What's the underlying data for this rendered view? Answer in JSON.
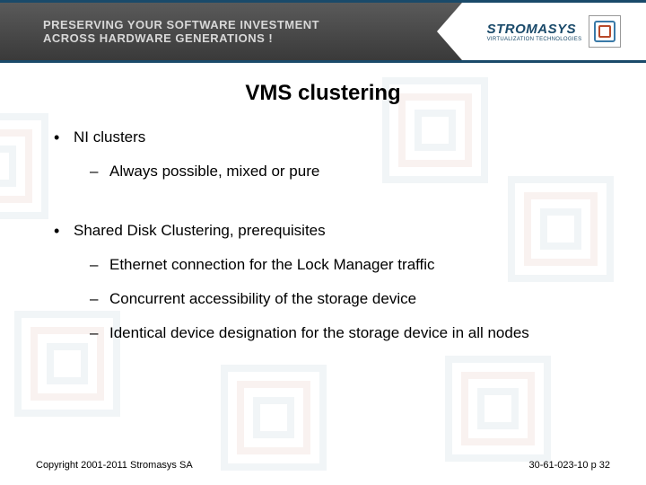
{
  "header": {
    "tagline_line1": "PRESERVING YOUR SOFTWARE INVESTMENT",
    "tagline_line2": "ACROSS HARDWARE GENERATIONS !",
    "logo_main": "STROMASYS",
    "logo_sub": "VIRTUALIZATION TECHNOLOGIES"
  },
  "slide": {
    "title": "VMS clustering",
    "bullets": [
      {
        "level": 1,
        "text": "NI clusters"
      },
      {
        "level": 2,
        "text": "Always possible, mixed or pure"
      },
      {
        "level": 0,
        "text": ""
      },
      {
        "level": 1,
        "text": "Shared Disk Clustering, prerequisites"
      },
      {
        "level": 2,
        "text": "Ethernet connection for the Lock Manager traffic"
      },
      {
        "level": 2,
        "text": "Concurrent accessibility of the storage device"
      },
      {
        "level": 2,
        "text": "Identical device designation for the storage device in all nodes"
      }
    ]
  },
  "footer": {
    "copyright": "Copyright 2001-2011 Stromasys SA",
    "docref": "30-61-023-10 p 32"
  },
  "style": {
    "title_fontsize": 24,
    "body_fontsize": 17,
    "footer_fontsize": 11,
    "text_color": "#000000",
    "header_bg": "#4a4a4a",
    "accent_color": "#1a4a6a",
    "background_color": "#ffffff",
    "watermark_opacity": 0.08
  }
}
